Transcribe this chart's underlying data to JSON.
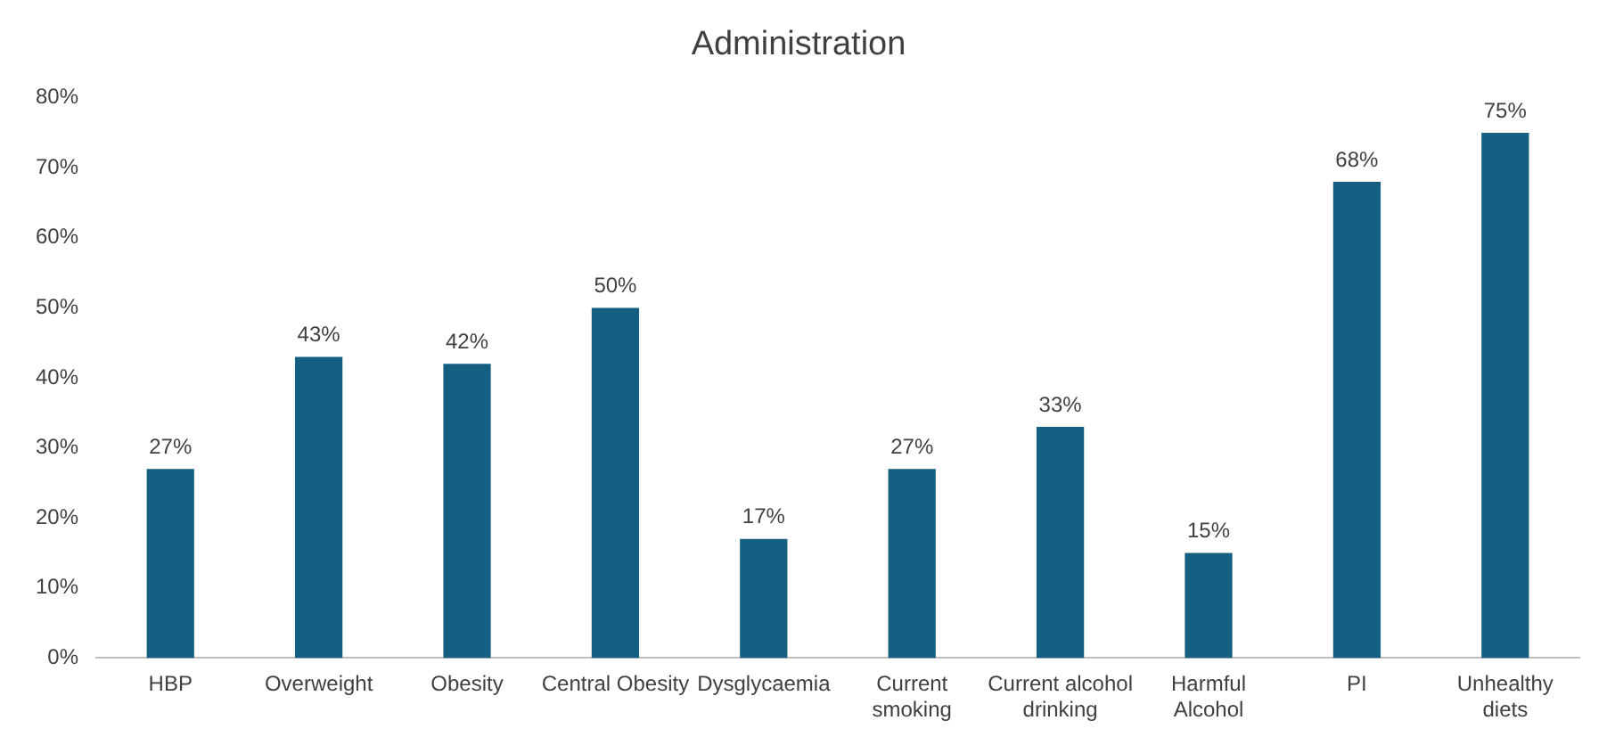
{
  "chart_data": {
    "type": "bar",
    "title": "Administration",
    "categories": [
      "HBP",
      "Overweight",
      "Obesity",
      "Central Obesity",
      "Dysglycaemia",
      "Current\nsmoking",
      "Current alcohol\ndrinking",
      "Harmful\nAlcohol",
      "PI",
      "Unhealthy\ndiets"
    ],
    "values": [
      27,
      43,
      42,
      50,
      17,
      27,
      33,
      15,
      68,
      75
    ],
    "value_labels": [
      "27%",
      "43%",
      "42%",
      "50%",
      "17%",
      "27%",
      "33%",
      "15%",
      "68%",
      "75%"
    ],
    "color": "#155f82",
    "ylim": [
      0,
      80
    ],
    "yticks": [
      {
        "value": 0,
        "label": "0%"
      },
      {
        "value": 10,
        "label": "10%"
      },
      {
        "value": 20,
        "label": "20%"
      },
      {
        "value": 30,
        "label": "30%"
      },
      {
        "value": 40,
        "label": "40%"
      },
      {
        "value": 50,
        "label": "50%"
      },
      {
        "value": 60,
        "label": "60%"
      },
      {
        "value": 70,
        "label": "70%"
      },
      {
        "value": 80,
        "label": "80%"
      }
    ],
    "grid": false,
    "legend": false
  }
}
